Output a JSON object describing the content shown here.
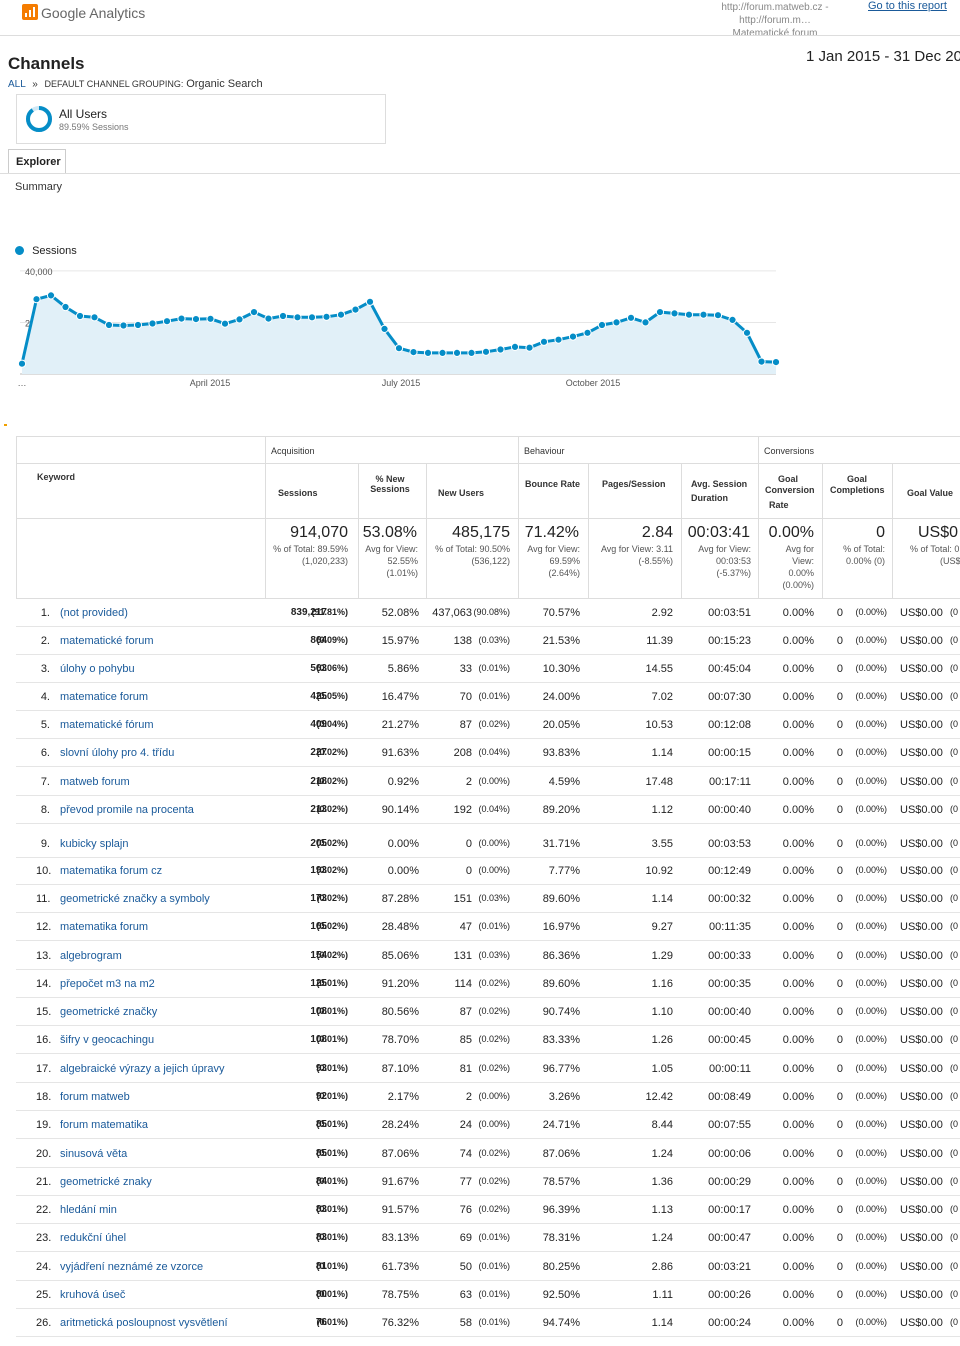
{
  "header": {
    "product": "Google Analytics",
    "property_line1": "http://forum.matweb.cz - http://forum.m…",
    "property_line2": "Matematické forum",
    "goto_link": "Go to this report"
  },
  "report": {
    "title": "Channels",
    "date_range": "1 Jan 2015 - 31 Dec 20",
    "breadcrumb_all": "ALL",
    "breadcrumb_sep": "»",
    "breadcrumb_dim": "DEFAULT CHANNEL GROUPING:",
    "breadcrumb_val": "Organic Search"
  },
  "segment": {
    "name": "All Users",
    "sub": "89.59% Sessions"
  },
  "tabs": {
    "explorer": "Explorer",
    "summary": "Summary"
  },
  "chart_data": {
    "type": "line",
    "series": [
      {
        "name": "Sessions",
        "values": [
          4000,
          29000,
          30500,
          26000,
          22500,
          22000,
          19000,
          18800,
          19000,
          19600,
          20500,
          21500,
          21300,
          21400,
          19500,
          21200,
          24000,
          21500,
          22500,
          22000,
          22000,
          22200,
          23000,
          25000,
          28000,
          17500,
          10000,
          8500,
          8200,
          8200,
          8200,
          8200,
          8600,
          9500,
          10500,
          10200,
          12500,
          13300,
          14500,
          16000,
          19000,
          20000,
          21800,
          20000,
          24000,
          23500,
          23000,
          23000,
          22800,
          21000,
          16000,
          4800,
          4600
        ]
      }
    ],
    "y_ticks": [
      "40,000",
      "20,000"
    ],
    "ylim": [
      0,
      45000
    ],
    "x_ticks": [
      "…",
      "April 2015",
      "July 2015",
      "October 2015"
    ],
    "color": "#058dc7"
  },
  "table": {
    "group_headers": {
      "acquisition": "Acquisition",
      "behaviour": "Behaviour",
      "conversions": "Conversions"
    },
    "columns": {
      "keyword": "Keyword",
      "sessions": "Sessions",
      "new_sessions": "% New Sessions",
      "new_users": "New Users",
      "bounce": "Bounce Rate",
      "pages": "Pages/Session",
      "duration_l1": "Avg. Session",
      "duration_l2": "Duration",
      "gcr_l1": "Goal",
      "gcr_l2": "Conversion",
      "gcr_l3": "Rate",
      "gc_l1": "Goal",
      "gc_l2": "Completions",
      "gv": "Goal Value"
    },
    "totals": {
      "sessions": "914,070",
      "sessions_s1": "% of Total: 89.59%",
      "sessions_s2": "(1,020,233)",
      "new_sessions": "53.08%",
      "new_sessions_s1": "Avg for View:",
      "new_sessions_s2": "52.55%",
      "new_sessions_s3": "(1.01%)",
      "new_users": "485,175",
      "new_users_s1": "% of Total: 90.50%",
      "new_users_s2": "(536,122)",
      "bounce": "71.42%",
      "bounce_s1": "Avg for View:",
      "bounce_s2": "69.59%",
      "bounce_s3": "(2.64%)",
      "pages": "2.84",
      "pages_s1": "Avg for View: 3.11",
      "pages_s2": "(-8.55%)",
      "duration": "00:03:41",
      "duration_s1": "Avg for View:",
      "duration_s2": "00:03:53",
      "duration_s3": "(-5.37%)",
      "gcr": "0.00%",
      "gcr_s1": "Avg for",
      "gcr_s2": "View:",
      "gcr_s3": "0.00%",
      "gcr_s4": "(0.00%)",
      "gc": "0",
      "gc_s1": "% of Total:",
      "gc_s2": "0.00% (0)",
      "gv": "US$0",
      "gv_s1": "% of Total: 0",
      "gv_s2": "(US$"
    },
    "rows": [
      {
        "n": "1.",
        "kw": "(not provided)",
        "s": "839,217",
        "sp": "(91.81%)",
        "ns": "52.08%",
        "nu": "437,063",
        "nup": "(90.08%)",
        "br": "70.57%",
        "ps": "2.92",
        "d": "00:03:51",
        "gcr": "0.00%",
        "gc": "0",
        "gcp": "(0.00%)",
        "gv": "US$0.00",
        "gvp": "(0"
      },
      {
        "n": "2.",
        "kw": "matematické forum",
        "s": "864",
        "sp": "(0.09%)",
        "ns": "15.97%",
        "nu": "138",
        "nup": "(0.03%)",
        "br": "21.53%",
        "ps": "11.39",
        "d": "00:15:23",
        "gcr": "0.00%",
        "gc": "0",
        "gcp": "(0.00%)",
        "gv": "US$0.00",
        "gvp": "(0"
      },
      {
        "n": "3.",
        "kw": "úlohy o pohybu",
        "s": "563",
        "sp": "(0.06%)",
        "ns": "5.86%",
        "nu": "33",
        "nup": "(0.01%)",
        "br": "10.30%",
        "ps": "14.55",
        "d": "00:45:04",
        "gcr": "0.00%",
        "gc": "0",
        "gcp": "(0.00%)",
        "gv": "US$0.00",
        "gvp": "(0"
      },
      {
        "n": "4.",
        "kw": "matematice forum",
        "s": "425",
        "sp": "(0.05%)",
        "ns": "16.47%",
        "nu": "70",
        "nup": "(0.01%)",
        "br": "24.00%",
        "ps": "7.02",
        "d": "00:07:30",
        "gcr": "0.00%",
        "gc": "0",
        "gcp": "(0.00%)",
        "gv": "US$0.00",
        "gvp": "(0"
      },
      {
        "n": "5.",
        "kw": "matematické fórum",
        "s": "409",
        "sp": "(0.04%)",
        "ns": "21.27%",
        "nu": "87",
        "nup": "(0.02%)",
        "br": "20.05%",
        "ps": "10.53",
        "d": "00:12:08",
        "gcr": "0.00%",
        "gc": "0",
        "gcp": "(0.00%)",
        "gv": "US$0.00",
        "gvp": "(0"
      },
      {
        "n": "6.",
        "kw": "slovní úlohy pro 4. třídu",
        "s": "227",
        "sp": "(0.02%)",
        "ns": "91.63%",
        "nu": "208",
        "nup": "(0.04%)",
        "br": "93.83%",
        "ps": "1.14",
        "d": "00:00:15",
        "gcr": "0.00%",
        "gc": "0",
        "gcp": "(0.00%)",
        "gv": "US$0.00",
        "gvp": "(0"
      },
      {
        "n": "7.",
        "kw": "matweb forum",
        "s": "218",
        "sp": "(0.02%)",
        "ns": "0.92%",
        "nu": "2",
        "nup": "(0.00%)",
        "br": "4.59%",
        "ps": "17.48",
        "d": "00:17:11",
        "gcr": "0.00%",
        "gc": "0",
        "gcp": "(0.00%)",
        "gv": "US$0.00",
        "gvp": "(0"
      },
      {
        "n": "8.",
        "kw": "převod promile na procenta",
        "s": "213",
        "sp": "(0.02%)",
        "ns": "90.14%",
        "nu": "192",
        "nup": "(0.04%)",
        "br": "89.20%",
        "ps": "1.12",
        "d": "00:00:40",
        "gcr": "0.00%",
        "gc": "0",
        "gcp": "(0.00%)",
        "gv": "US$0.00",
        "gvp": "(0"
      },
      {
        "n": "9.",
        "kw": "kubicky splajn",
        "s": "205",
        "sp": "(0.02%)",
        "ns": "0.00%",
        "nu": "0",
        "nup": "(0.00%)",
        "br": "31.71%",
        "ps": "3.55",
        "d": "00:03:53",
        "gcr": "0.00%",
        "gc": "0",
        "gcp": "(0.00%)",
        "gv": "US$0.00",
        "gvp": "(0"
      },
      {
        "n": "10.",
        "kw": "matematika forum cz",
        "s": "193",
        "sp": "(0.02%)",
        "ns": "0.00%",
        "nu": "0",
        "nup": "(0.00%)",
        "br": "7.77%",
        "ps": "10.92",
        "d": "00:12:49",
        "gcr": "0.00%",
        "gc": "0",
        "gcp": "(0.00%)",
        "gv": "US$0.00",
        "gvp": "(0"
      },
      {
        "n": "11.",
        "kw": "geometrické značky a symboly",
        "s": "173",
        "sp": "(0.02%)",
        "ns": "87.28%",
        "nu": "151",
        "nup": "(0.03%)",
        "br": "89.60%",
        "ps": "1.14",
        "d": "00:00:32",
        "gcr": "0.00%",
        "gc": "0",
        "gcp": "(0.00%)",
        "gv": "US$0.00",
        "gvp": "(0"
      },
      {
        "n": "12.",
        "kw": "matematika forum",
        "s": "165",
        "sp": "(0.02%)",
        "ns": "28.48%",
        "nu": "47",
        "nup": "(0.01%)",
        "br": "16.97%",
        "ps": "9.27",
        "d": "00:11:35",
        "gcr": "0.00%",
        "gc": "0",
        "gcp": "(0.00%)",
        "gv": "US$0.00",
        "gvp": "(0"
      },
      {
        "n": "13.",
        "kw": "algebrogram",
        "s": "154",
        "sp": "(0.02%)",
        "ns": "85.06%",
        "nu": "131",
        "nup": "(0.03%)",
        "br": "86.36%",
        "ps": "1.29",
        "d": "00:00:33",
        "gcr": "0.00%",
        "gc": "0",
        "gcp": "(0.00%)",
        "gv": "US$0.00",
        "gvp": "(0"
      },
      {
        "n": "14.",
        "kw": "přepočet m3 na m2",
        "s": "125",
        "sp": "(0.01%)",
        "ns": "91.20%",
        "nu": "114",
        "nup": "(0.02%)",
        "br": "89.60%",
        "ps": "1.16",
        "d": "00:00:35",
        "gcr": "0.00%",
        "gc": "0",
        "gcp": "(0.00%)",
        "gv": "US$0.00",
        "gvp": "(0"
      },
      {
        "n": "15.",
        "kw": "geometrické značky",
        "s": "108",
        "sp": "(0.01%)",
        "ns": "80.56%",
        "nu": "87",
        "nup": "(0.02%)",
        "br": "90.74%",
        "ps": "1.10",
        "d": "00:00:40",
        "gcr": "0.00%",
        "gc": "0",
        "gcp": "(0.00%)",
        "gv": "US$0.00",
        "gvp": "(0"
      },
      {
        "n": "16.",
        "kw": "šifry v geocachingu",
        "s": "108",
        "sp": "(0.01%)",
        "ns": "78.70%",
        "nu": "85",
        "nup": "(0.02%)",
        "br": "83.33%",
        "ps": "1.26",
        "d": "00:00:45",
        "gcr": "0.00%",
        "gc": "0",
        "gcp": "(0.00%)",
        "gv": "US$0.00",
        "gvp": "(0"
      },
      {
        "n": "17.",
        "kw": "algebraické výrazy a jejich úpravy",
        "s": "93",
        "sp": "(0.01%)",
        "ns": "87.10%",
        "nu": "81",
        "nup": "(0.02%)",
        "br": "96.77%",
        "ps": "1.05",
        "d": "00:00:11",
        "gcr": "0.00%",
        "gc": "0",
        "gcp": "(0.00%)",
        "gv": "US$0.00",
        "gvp": "(0"
      },
      {
        "n": "18.",
        "kw": "forum matweb",
        "s": "92",
        "sp": "(0.01%)",
        "ns": "2.17%",
        "nu": "2",
        "nup": "(0.00%)",
        "br": "3.26%",
        "ps": "12.42",
        "d": "00:08:49",
        "gcr": "0.00%",
        "gc": "0",
        "gcp": "(0.00%)",
        "gv": "US$0.00",
        "gvp": "(0"
      },
      {
        "n": "19.",
        "kw": "forum matematika",
        "s": "85",
        "sp": "(0.01%)",
        "ns": "28.24%",
        "nu": "24",
        "nup": "(0.00%)",
        "br": "24.71%",
        "ps": "8.44",
        "d": "00:07:55",
        "gcr": "0.00%",
        "gc": "0",
        "gcp": "(0.00%)",
        "gv": "US$0.00",
        "gvp": "(0"
      },
      {
        "n": "20.",
        "kw": "sinusová věta",
        "s": "85",
        "sp": "(0.01%)",
        "ns": "87.06%",
        "nu": "74",
        "nup": "(0.02%)",
        "br": "87.06%",
        "ps": "1.24",
        "d": "00:00:06",
        "gcr": "0.00%",
        "gc": "0",
        "gcp": "(0.00%)",
        "gv": "US$0.00",
        "gvp": "(0"
      },
      {
        "n": "21.",
        "kw": "geometrické znaky",
        "s": "84",
        "sp": "(0.01%)",
        "ns": "91.67%",
        "nu": "77",
        "nup": "(0.02%)",
        "br": "78.57%",
        "ps": "1.36",
        "d": "00:00:29",
        "gcr": "0.00%",
        "gc": "0",
        "gcp": "(0.00%)",
        "gv": "US$0.00",
        "gvp": "(0"
      },
      {
        "n": "22.",
        "kw": "hledání min",
        "s": "83",
        "sp": "(0.01%)",
        "ns": "91.57%",
        "nu": "76",
        "nup": "(0.02%)",
        "br": "96.39%",
        "ps": "1.13",
        "d": "00:00:17",
        "gcr": "0.00%",
        "gc": "0",
        "gcp": "(0.00%)",
        "gv": "US$0.00",
        "gvp": "(0"
      },
      {
        "n": "23.",
        "kw": "redukční úhel",
        "s": "83",
        "sp": "(0.01%)",
        "ns": "83.13%",
        "nu": "69",
        "nup": "(0.01%)",
        "br": "78.31%",
        "ps": "1.24",
        "d": "00:00:47",
        "gcr": "0.00%",
        "gc": "0",
        "gcp": "(0.00%)",
        "gv": "US$0.00",
        "gvp": "(0"
      },
      {
        "n": "24.",
        "kw": "vyjádření neznámé ze vzorce",
        "s": "81",
        "sp": "(0.01%)",
        "ns": "61.73%",
        "nu": "50",
        "nup": "(0.01%)",
        "br": "80.25%",
        "ps": "2.86",
        "d": "00:03:21",
        "gcr": "0.00%",
        "gc": "0",
        "gcp": "(0.00%)",
        "gv": "US$0.00",
        "gvp": "(0"
      },
      {
        "n": "25.",
        "kw": "kruhová úseč",
        "s": "80",
        "sp": "(0.01%)",
        "ns": "78.75%",
        "nu": "63",
        "nup": "(0.01%)",
        "br": "92.50%",
        "ps": "1.11",
        "d": "00:00:26",
        "gcr": "0.00%",
        "gc": "0",
        "gcp": "(0.00%)",
        "gv": "US$0.00",
        "gvp": "(0"
      },
      {
        "n": "26.",
        "kw": "aritmetická posloupnost vysvětlení",
        "s": "76",
        "sp": "(0.01%)",
        "ns": "76.32%",
        "nu": "58",
        "nup": "(0.01%)",
        "br": "94.74%",
        "ps": "1.14",
        "d": "00:00:24",
        "gcr": "0.00%",
        "gc": "0",
        "gcp": "(0.00%)",
        "gv": "US$0.00",
        "gvp": "(0"
      }
    ]
  }
}
